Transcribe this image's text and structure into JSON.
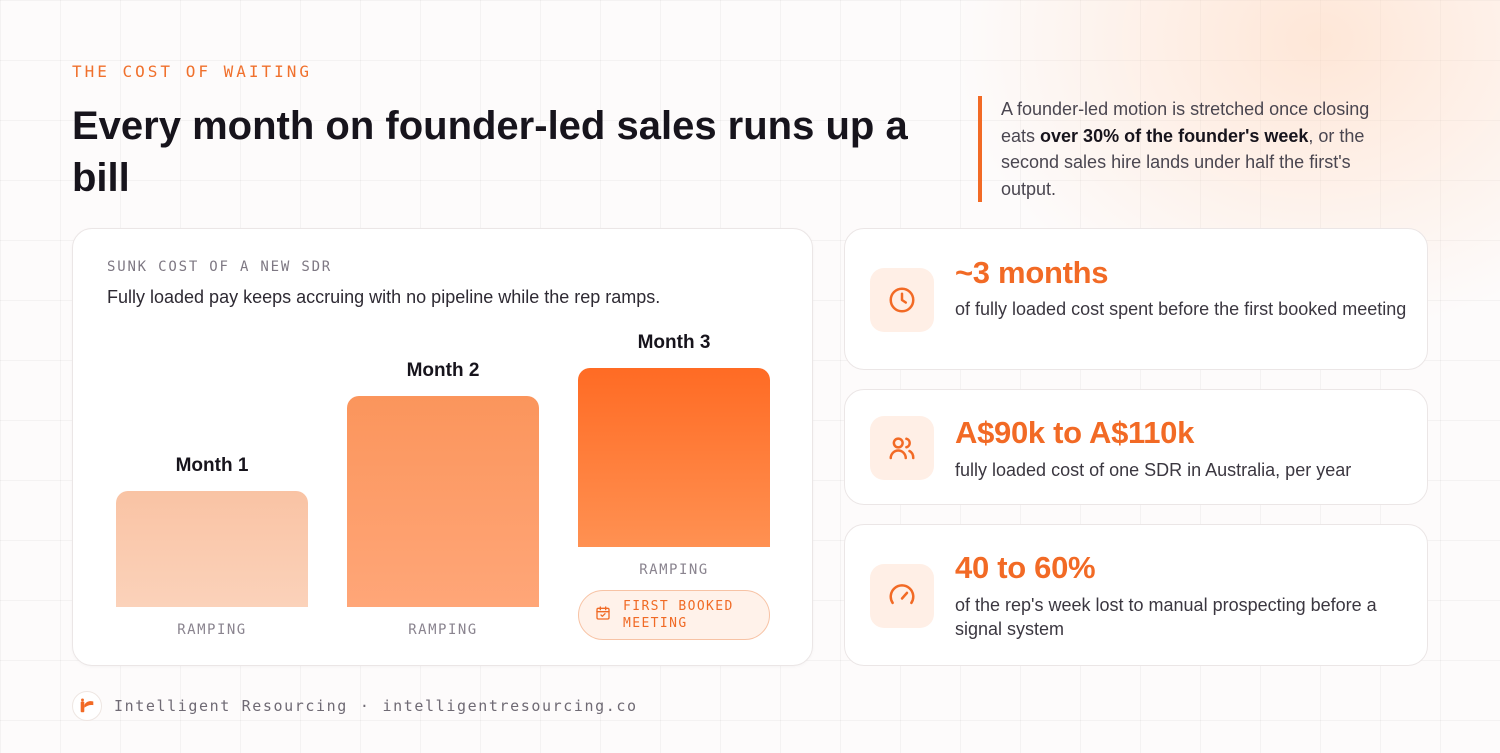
{
  "header": {
    "eyebrow": "THE COST OF WAITING",
    "title": "Every month on founder-led sales runs up a bill",
    "quote_before": "A founder-led motion is stretched once closing eats ",
    "quote_bold": "over 30% of the founder's week",
    "quote_after": ", or the second sales hire lands under half the first's output."
  },
  "chart_card": {
    "label": "SUNK COST OF A NEW SDR",
    "subtitle": "Fully loaded pay keeps accruing with no pipeline while the rep ramps.",
    "milestone_label": "FIRST BOOKED MEETING"
  },
  "chart_data": {
    "type": "bar",
    "categories": [
      "Month 1",
      "Month 2",
      "Month 3"
    ],
    "values": [
      1,
      2,
      3
    ],
    "bar_tags": [
      "RAMPING",
      "RAMPING",
      "RAMPING"
    ],
    "colors": {
      "month1": [
        "#f9c3a4",
        "#fbd2ba"
      ],
      "month2": [
        "#fb955c",
        "#ffa678"
      ],
      "month3": [
        "#ff6b24",
        "#ff9152"
      ]
    }
  },
  "stats": [
    {
      "icon": "clock-icon",
      "value": "~3 months",
      "description": "of fully loaded cost spent before the first booked meeting"
    },
    {
      "icon": "users-icon",
      "value": "A$90k to A$110k",
      "description": "fully loaded cost of one SDR in Australia, per year"
    },
    {
      "icon": "gauge-icon",
      "value": "40 to 60%",
      "description": "of the rep's week lost to manual prospecting before a signal system"
    }
  ],
  "footer": {
    "brand": "Intelligent Resourcing",
    "separator": "·",
    "url": "intelligentresourcing.co"
  },
  "colors": {
    "accent": "#f26a25",
    "accent_soft": "#ffefe6",
    "text_dark": "#17141c"
  }
}
